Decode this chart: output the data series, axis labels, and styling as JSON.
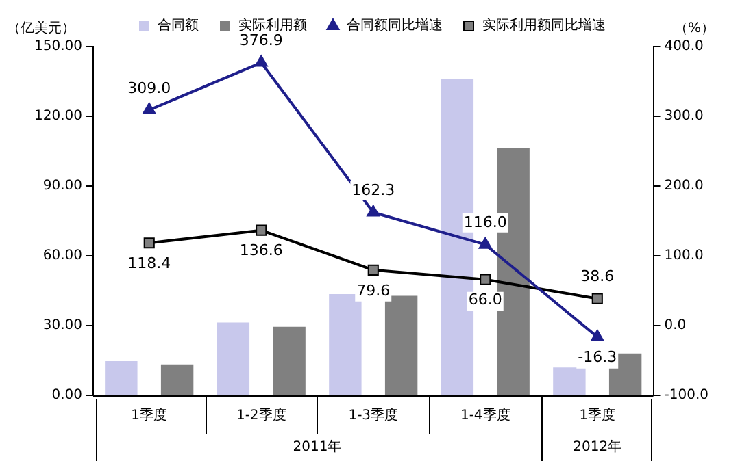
{
  "chart_data": {
    "type": "bar",
    "ylabel": "（亿美元）",
    "y2label": "（%）",
    "categories": [
      "1季度",
      "1-2季度",
      "1-3季度",
      "1-4季度",
      "1季度"
    ],
    "annotations": [
      "2011年",
      "2012年"
    ],
    "series": [
      {
        "name": "合同额",
        "color": "#c8c8ec",
        "values": [
          14.7,
          31.3,
          43.5,
          136,
          12
        ]
      },
      {
        "name": "实际利用额",
        "color": "#808080",
        "values": [
          13.3,
          29.5,
          42.8,
          106.3,
          18
        ]
      },
      {
        "name": "合同额同比增速",
        "type": "line",
        "axis": "y2",
        "color": "#1f1f8c",
        "marker": "triangle",
        "values": [
          309.0,
          376.9,
          162.3,
          116.0,
          -16.3
        ],
        "value_labels": [
          "309.0",
          "376.9",
          "162.3",
          "116.0",
          "-16.3"
        ]
      },
      {
        "name": "实际利用额同比增速",
        "type": "line",
        "axis": "y2",
        "color": "#000000",
        "marker": "square",
        "values": [
          118.4,
          136.6,
          79.6,
          66.0,
          38.6
        ],
        "value_labels": [
          "118.4",
          "136.6",
          "79.6",
          "66.0",
          "38.6"
        ]
      }
    ],
    "ylim": [
      0,
      150
    ],
    "yticks": [
      {
        "value": 0,
        "label": "0.00"
      },
      {
        "value": 30,
        "label": "30.00"
      },
      {
        "value": 60,
        "label": "60.00"
      },
      {
        "value": 90,
        "label": "90.00"
      },
      {
        "value": 120,
        "label": "120.00"
      },
      {
        "value": 150,
        "label": "150.00"
      }
    ],
    "y2lim": [
      -100,
      400
    ],
    "y2ticks": [
      {
        "value": -100,
        "label": "-100.0"
      },
      {
        "value": 0,
        "label": "0.0"
      },
      {
        "value": 100,
        "label": "100.0"
      },
      {
        "value": 200,
        "label": "200.0"
      },
      {
        "value": 300,
        "label": "300.0"
      },
      {
        "value": 400,
        "label": "400.0"
      }
    ],
    "grid": false,
    "legend": "top"
  }
}
